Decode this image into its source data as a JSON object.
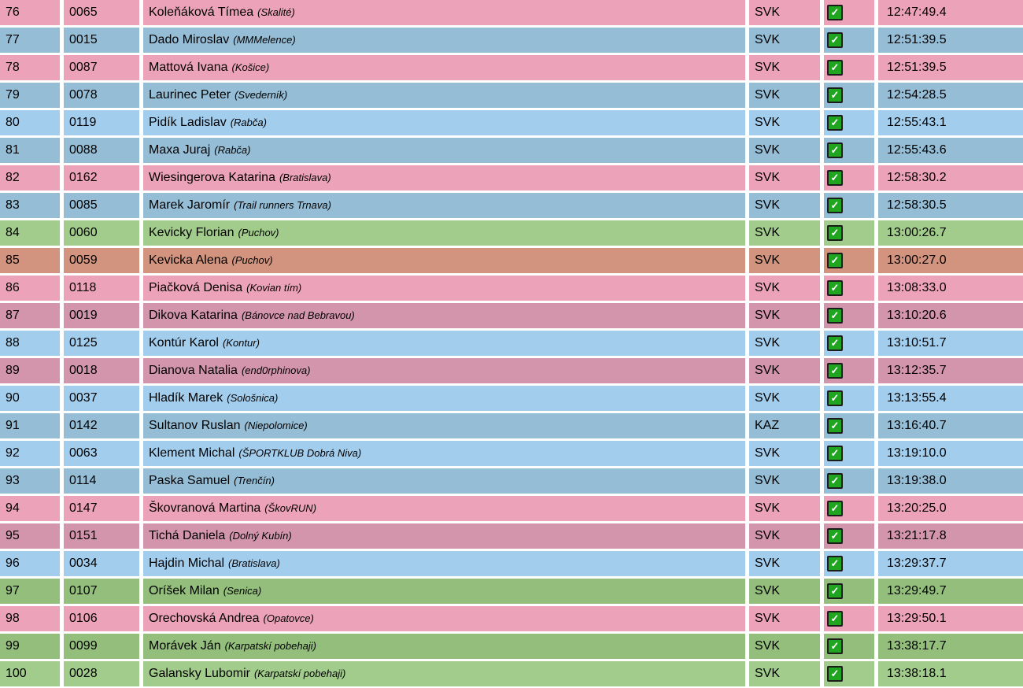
{
  "colors": {
    "pink": "#ECA3BA",
    "pink_dusty": "#D295AC",
    "blue_gray": "#95BDD6",
    "blue_light": "#A3CDED",
    "green_light": "#A2CC8B",
    "green_dark": "#93BE7C",
    "salmon": "#D2947E",
    "checkbox_green": "#1FA51F",
    "text": "#000000"
  },
  "icons": {
    "checkbox_checked": "✓"
  },
  "rows": [
    {
      "rank": "76",
      "bib": "0065",
      "name": "Koleňáková Tímea",
      "club": "(Skalité)",
      "country": "SVK",
      "checked": true,
      "time": "12:47:49.4",
      "color": "pink"
    },
    {
      "rank": "77",
      "bib": "0015",
      "name": "Dado Miroslav",
      "club": "(MMMelence)",
      "country": "SVK",
      "checked": true,
      "time": "12:51:39.5",
      "color": "blue_gray"
    },
    {
      "rank": "78",
      "bib": "0087",
      "name": "Mattová Ivana",
      "club": "(Košice)",
      "country": "SVK",
      "checked": true,
      "time": "12:51:39.5",
      "color": "pink"
    },
    {
      "rank": "79",
      "bib": "0078",
      "name": "Laurinec Peter",
      "club": "(Svederník)",
      "country": "SVK",
      "checked": true,
      "time": "12:54:28.5",
      "color": "blue_gray"
    },
    {
      "rank": "80",
      "bib": "0119",
      "name": "Pidík Ladislav",
      "club": "(Rabča)",
      "country": "SVK",
      "checked": true,
      "time": "12:55:43.1",
      "color": "blue_light"
    },
    {
      "rank": "81",
      "bib": "0088",
      "name": "Maxa Juraj",
      "club": "(Rabča)",
      "country": "SVK",
      "checked": true,
      "time": "12:55:43.6",
      "color": "blue_gray"
    },
    {
      "rank": "82",
      "bib": "0162",
      "name": "Wiesingerova Katarina",
      "club": "(Bratislava)",
      "country": "SVK",
      "checked": true,
      "time": "12:58:30.2",
      "color": "pink"
    },
    {
      "rank": "83",
      "bib": "0085",
      "name": "Marek Jaromír",
      "club": "(Trail runners Trnava)",
      "country": "SVK",
      "checked": true,
      "time": "12:58:30.5",
      "color": "blue_gray"
    },
    {
      "rank": "84",
      "bib": "0060",
      "name": "Kevicky Florian",
      "club": "(Puchov)",
      "country": "SVK",
      "checked": true,
      "time": "13:00:26.7",
      "color": "green_light"
    },
    {
      "rank": "85",
      "bib": "0059",
      "name": "Kevicka Alena",
      "club": "(Puchov)",
      "country": "SVK",
      "checked": true,
      "time": "13:00:27.0",
      "color": "salmon"
    },
    {
      "rank": "86",
      "bib": "0118",
      "name": "Piačková Denisa",
      "club": "(Kovian tím)",
      "country": "SVK",
      "checked": true,
      "time": "13:08:33.0",
      "color": "pink"
    },
    {
      "rank": "87",
      "bib": "0019",
      "name": "Dikova Katarina",
      "club": "(Bánovce nad Bebravou)",
      "country": "SVK",
      "checked": true,
      "time": "13:10:20.6",
      "color": "pink_dusty"
    },
    {
      "rank": "88",
      "bib": "0125",
      "name": "Kontúr Karol",
      "club": "(Kontur)",
      "country": "SVK",
      "checked": true,
      "time": "13:10:51.7",
      "color": "blue_light"
    },
    {
      "rank": "89",
      "bib": "0018",
      "name": "Dianova Natalia",
      "club": "(end0rphinova)",
      "country": "SVK",
      "checked": true,
      "time": "13:12:35.7",
      "color": "pink_dusty"
    },
    {
      "rank": "90",
      "bib": "0037",
      "name": "Hladík Marek",
      "club": "(Sološnica)",
      "country": "SVK",
      "checked": true,
      "time": "13:13:55.4",
      "color": "blue_light"
    },
    {
      "rank": "91",
      "bib": "0142",
      "name": "Sultanov Ruslan",
      "club": "(Niepolomice)",
      "country": "KAZ",
      "checked": true,
      "time": "13:16:40.7",
      "color": "blue_gray"
    },
    {
      "rank": "92",
      "bib": "0063",
      "name": "Klement Michal",
      "club": "(ŠPORTKLUB Dobrá Niva)",
      "country": "SVK",
      "checked": true,
      "time": "13:19:10.0",
      "color": "blue_light"
    },
    {
      "rank": "93",
      "bib": "0114",
      "name": "Paska Samuel",
      "club": "(Trenčín)",
      "country": "SVK",
      "checked": true,
      "time": "13:19:38.0",
      "color": "blue_gray"
    },
    {
      "rank": "94",
      "bib": "0147",
      "name": "Škovranová Martina",
      "club": "(ŠkovRUN)",
      "country": "SVK",
      "checked": true,
      "time": "13:20:25.0",
      "color": "pink"
    },
    {
      "rank": "95",
      "bib": "0151",
      "name": "Tichá Daniela",
      "club": "(Dolný Kubín)",
      "country": "SVK",
      "checked": true,
      "time": "13:21:17.8",
      "color": "pink_dusty"
    },
    {
      "rank": "96",
      "bib": "0034",
      "name": "Hajdin Michal",
      "club": "(Bratislava)",
      "country": "SVK",
      "checked": true,
      "time": "13:29:37.7",
      "color": "blue_light"
    },
    {
      "rank": "97",
      "bib": "0107",
      "name": "Oríšek Milan",
      "club": "(Senica)",
      "country": "SVK",
      "checked": true,
      "time": "13:29:49.7",
      "color": "green_dark"
    },
    {
      "rank": "98",
      "bib": "0106",
      "name": "Orechovská Andrea",
      "club": "(Opatovce)",
      "country": "SVK",
      "checked": true,
      "time": "13:29:50.1",
      "color": "pink"
    },
    {
      "rank": "99",
      "bib": "0099",
      "name": "Morávek Ján",
      "club": "(Karpatskí pobehaji)",
      "country": "SVK",
      "checked": true,
      "time": "13:38:17.7",
      "color": "green_dark"
    },
    {
      "rank": "100",
      "bib": "0028",
      "name": "Galansky Lubomir",
      "club": "(Karpatskí pobehaji)",
      "country": "SVK",
      "checked": true,
      "time": "13:38:18.1",
      "color": "green_light"
    }
  ],
  "partial_next_row_color": "blue_light"
}
